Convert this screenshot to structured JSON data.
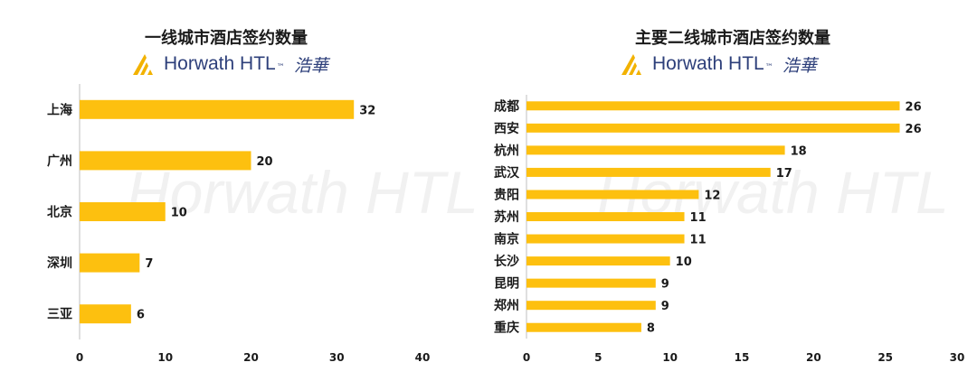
{
  "chart_data": [
    {
      "type": "bar",
      "orientation": "horizontal",
      "title": "一线城市酒店签约数量",
      "brand": {
        "name": "Horwath HTL",
        "tm": "™",
        "cn": "浩華"
      },
      "watermark": "Horwath HTL",
      "categories": [
        "上海",
        "广州",
        "北京",
        "深圳",
        "三亚"
      ],
      "values": [
        32,
        20,
        10,
        7,
        6
      ],
      "xlim": [
        0,
        40
      ],
      "xticks": [
        0,
        10,
        20,
        30,
        40
      ],
      "bar_color": "#FDC00F"
    },
    {
      "type": "bar",
      "orientation": "horizontal",
      "title": "主要二线城市酒店签约数量",
      "brand": {
        "name": "Horwath HTL",
        "tm": "™",
        "cn": "浩華"
      },
      "watermark": "Horwath HTL",
      "categories": [
        "成都",
        "西安",
        "杭州",
        "武汉",
        "贵阳",
        "苏州",
        "南京",
        "长沙",
        "昆明",
        "郑州",
        "重庆"
      ],
      "values": [
        26,
        26,
        18,
        17,
        12,
        11,
        11,
        10,
        9,
        9,
        8
      ],
      "xlim": [
        0,
        30
      ],
      "xticks": [
        0,
        5,
        10,
        15,
        20,
        25,
        30
      ],
      "bar_color": "#FDC00F"
    }
  ]
}
